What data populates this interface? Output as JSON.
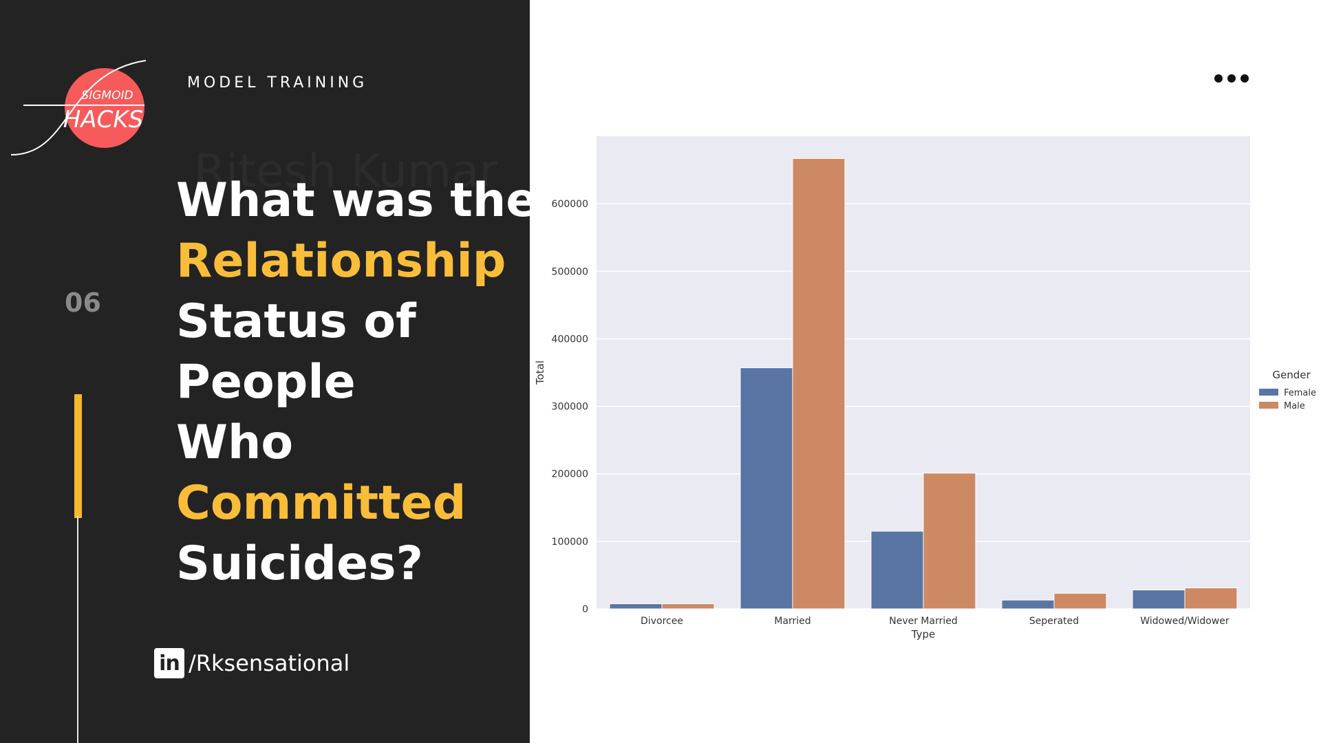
{
  "slide": {
    "section_label": "MODEL TRAINING",
    "ghost_text": "Ritesh Kumar",
    "slide_number": "06",
    "title_lines": [
      {
        "text": "What was the",
        "highlight": false
      },
      {
        "text": "Relationship",
        "highlight": true
      },
      {
        "text": "Status of",
        "highlight": false
      },
      {
        "text": "People",
        "highlight": false
      },
      {
        "text": "Who",
        "highlight": false
      },
      {
        "text": "Committed",
        "highlight": true
      },
      {
        "text": "Suicides?",
        "highlight": false
      }
    ],
    "linkedin_icon_label": "in",
    "linkedin_handle": "/Rksensational",
    "logo_text_top": "SIGMOID",
    "logo_text_bottom": "HACKS",
    "menu_icon": "more-horizontal-icon"
  },
  "colors": {
    "dark_bg": "#232323",
    "accent_yellow": "#f9bd3a",
    "logo_red": "#f65a5b",
    "female": "#5875a4",
    "male": "#cc8963",
    "plot_bg": "#eaeaf2"
  },
  "chart_data": {
    "type": "bar",
    "categories": [
      "Divorcee",
      "Married",
      "Never Married",
      "Seperated",
      "Widowed/Widower"
    ],
    "series": [
      {
        "name": "Female",
        "values": [
          7500,
          357000,
          115000,
          13000,
          28000
        ]
      },
      {
        "name": "Male",
        "values": [
          7500,
          667000,
          201000,
          23000,
          31000
        ]
      }
    ],
    "xlabel": "Type",
    "ylabel": "Total",
    "ylim": [
      0,
      700000
    ],
    "yticks": [
      0,
      100000,
      200000,
      300000,
      400000,
      500000,
      600000
    ],
    "ytick_labels": [
      "0",
      "100000",
      "200000",
      "300000",
      "400000",
      "500000",
      "600000"
    ],
    "legend_title": "Gender",
    "legend_position": "right",
    "grid": true
  }
}
